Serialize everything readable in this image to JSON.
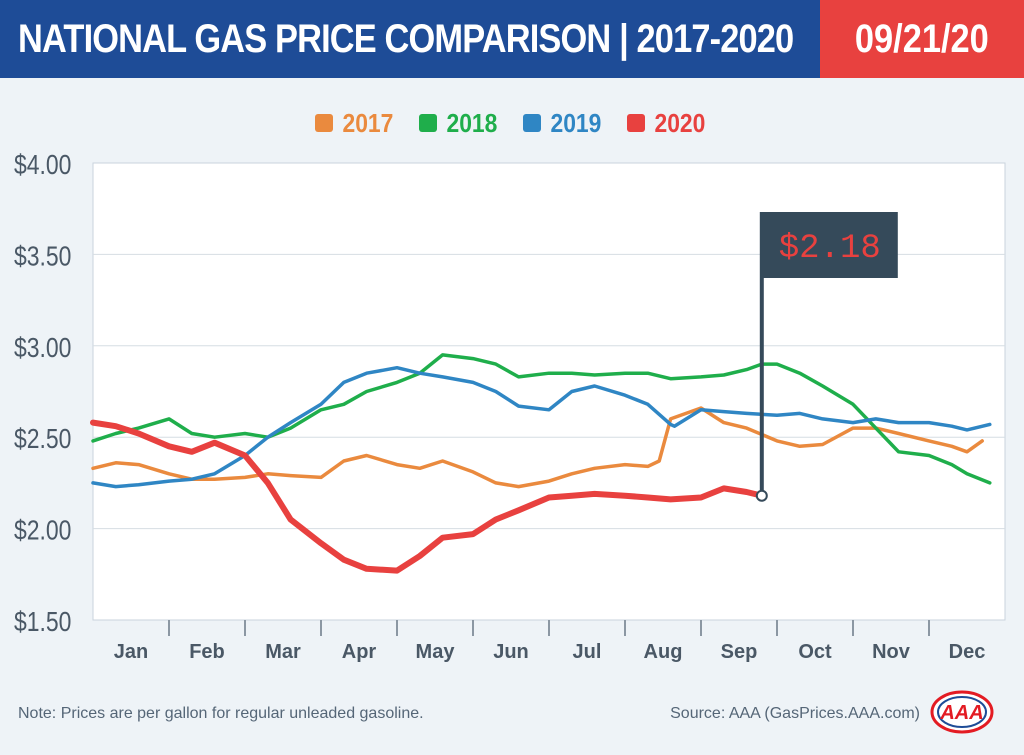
{
  "header": {
    "title": "NATIONAL GAS PRICE COMPARISON | 2017-2020",
    "date": "09/21/20"
  },
  "colors": {
    "header_blue": "#1e4c97",
    "header_red": "#e8413f",
    "y2017": "#ea8a3e",
    "y2018": "#1fae4b",
    "y2019": "#2f86c4",
    "y2020": "#e8413f",
    "flag": "#354a5a"
  },
  "chart_data": {
    "type": "line",
    "xlabel": "",
    "ylabel": "",
    "ylim": [
      1.5,
      4.0
    ],
    "yticks": [
      "$1.50",
      "$2.00",
      "$2.50",
      "$3.00",
      "$3.50",
      "$4.00"
    ],
    "months": [
      "Jan",
      "Feb",
      "Mar",
      "Apr",
      "May",
      "Jun",
      "Jul",
      "Aug",
      "Sep",
      "Oct",
      "Nov",
      "Dec"
    ],
    "grid": true,
    "legend_position": "top-center",
    "series": [
      {
        "name": "2017",
        "color": "#ea8a3e",
        "x": [
          0,
          0.3,
          0.6,
          1,
          1.3,
          1.6,
          2,
          2.3,
          2.6,
          3,
          3.3,
          3.6,
          4,
          4.3,
          4.6,
          5,
          5.3,
          5.6,
          6,
          6.3,
          6.6,
          7,
          7.3,
          7.45,
          7.6,
          8,
          8.3,
          8.6,
          9,
          9.3,
          9.6,
          10,
          10.3,
          10.6,
          11,
          11.3,
          11.5,
          11.7
        ],
        "y": [
          2.33,
          2.36,
          2.35,
          2.3,
          2.27,
          2.27,
          2.28,
          2.3,
          2.29,
          2.28,
          2.37,
          2.4,
          2.35,
          2.33,
          2.37,
          2.31,
          2.25,
          2.23,
          2.26,
          2.3,
          2.33,
          2.35,
          2.34,
          2.37,
          2.6,
          2.66,
          2.58,
          2.55,
          2.48,
          2.45,
          2.46,
          2.55,
          2.55,
          2.52,
          2.48,
          2.45,
          2.42,
          2.48
        ]
      },
      {
        "name": "2018",
        "color": "#1fae4b",
        "x": [
          0,
          0.3,
          0.6,
          1,
          1.3,
          1.6,
          2,
          2.3,
          2.6,
          3,
          3.3,
          3.6,
          4,
          4.3,
          4.6,
          5,
          5.3,
          5.6,
          6,
          6.3,
          6.6,
          7,
          7.3,
          7.6,
          8,
          8.3,
          8.6,
          8.8,
          9,
          9.3,
          9.6,
          10,
          10.3,
          10.6,
          11,
          11.3,
          11.5,
          11.8
        ],
        "y": [
          2.48,
          2.52,
          2.55,
          2.6,
          2.52,
          2.5,
          2.52,
          2.5,
          2.55,
          2.65,
          2.68,
          2.75,
          2.8,
          2.85,
          2.95,
          2.93,
          2.9,
          2.83,
          2.85,
          2.85,
          2.84,
          2.85,
          2.85,
          2.82,
          2.83,
          2.84,
          2.87,
          2.9,
          2.9,
          2.85,
          2.78,
          2.68,
          2.55,
          2.42,
          2.4,
          2.35,
          2.3,
          2.25
        ]
      },
      {
        "name": "2019",
        "color": "#2f86c4",
        "x": [
          0,
          0.3,
          0.6,
          1,
          1.3,
          1.6,
          2,
          2.3,
          2.6,
          3,
          3.3,
          3.6,
          4,
          4.3,
          4.6,
          5,
          5.3,
          5.6,
          6,
          6.3,
          6.6,
          7,
          7.3,
          7.6,
          7.65,
          8,
          8.3,
          8.6,
          9,
          9.3,
          9.6,
          10,
          10.3,
          10.6,
          11,
          11.3,
          11.5,
          11.8
        ],
        "y": [
          2.25,
          2.23,
          2.24,
          2.26,
          2.27,
          2.3,
          2.4,
          2.5,
          2.58,
          2.68,
          2.8,
          2.85,
          2.88,
          2.85,
          2.83,
          2.8,
          2.75,
          2.67,
          2.65,
          2.75,
          2.78,
          2.73,
          2.68,
          2.57,
          2.56,
          2.65,
          2.64,
          2.63,
          2.62,
          2.63,
          2.6,
          2.58,
          2.6,
          2.58,
          2.58,
          2.56,
          2.54,
          2.57
        ]
      },
      {
        "name": "2020",
        "color": "#e8413f",
        "x": [
          0,
          0.3,
          0.6,
          1,
          1.3,
          1.6,
          2,
          2.3,
          2.6,
          3,
          3.3,
          3.6,
          4,
          4.3,
          4.6,
          5,
          5.3,
          5.6,
          6,
          6.3,
          6.6,
          7,
          7.3,
          7.6,
          8,
          8.3,
          8.6,
          8.8
        ],
        "y": [
          2.58,
          2.56,
          2.52,
          2.45,
          2.42,
          2.47,
          2.4,
          2.25,
          2.05,
          1.92,
          1.83,
          1.78,
          1.77,
          1.85,
          1.95,
          1.97,
          2.05,
          2.1,
          2.17,
          2.18,
          2.19,
          2.18,
          2.17,
          2.16,
          2.17,
          2.22,
          2.2,
          2.18
        ]
      }
    ],
    "annotation": {
      "label": "$2.18",
      "x": 8.8,
      "y": 2.18
    }
  },
  "footer": {
    "note": "Note: Prices are per gallon for regular unleaded gasoline.",
    "source": "Source: AAA (GasPrices.AAA.com)",
    "logo_text": "AAA"
  }
}
